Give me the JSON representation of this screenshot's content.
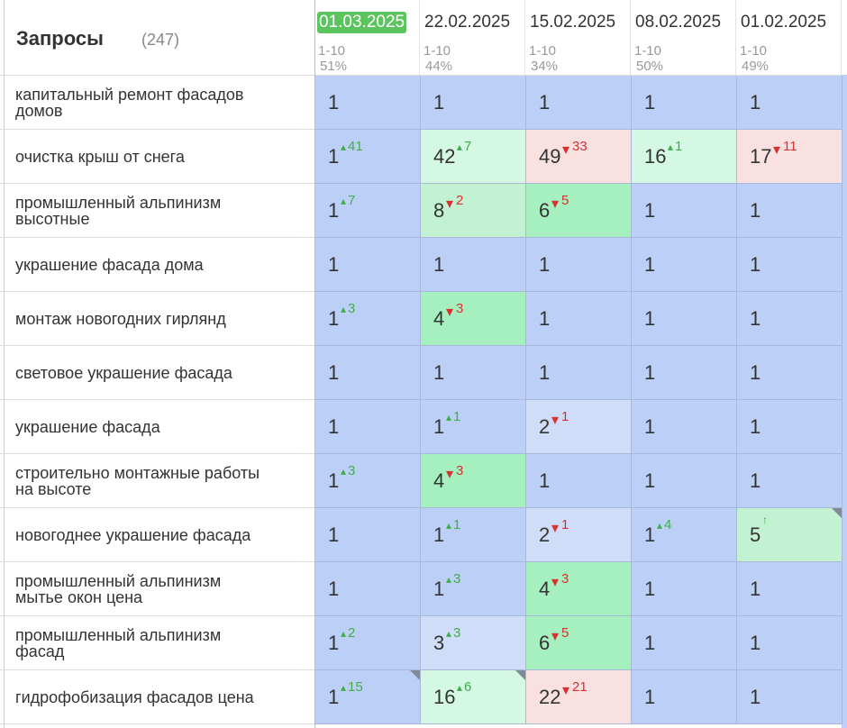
{
  "header": {
    "title": "Запросы",
    "count": "(247)"
  },
  "columns": [
    {
      "date": "01.03.2025",
      "range": "1-10",
      "percent": "51%",
      "current": true
    },
    {
      "date": "22.02.2025",
      "range": "1-10",
      "percent": "44%"
    },
    {
      "date": "15.02.2025",
      "range": "1-10",
      "percent": "34%"
    },
    {
      "date": "08.02.2025",
      "range": "1-10",
      "percent": "50%"
    },
    {
      "date": "01.02.2025",
      "range": "1-10",
      "percent": "49%"
    }
  ],
  "rows": [
    {
      "query": "капитальный ремонт фасадов домов",
      "cells": [
        {
          "value": 1,
          "bg": "blue"
        },
        {
          "value": 1,
          "bg": "blue"
        },
        {
          "value": 1,
          "bg": "blue"
        },
        {
          "value": 1,
          "bg": "blue"
        },
        {
          "value": 1,
          "bg": "blue"
        }
      ]
    },
    {
      "query": "очистка крыш от снега",
      "cells": [
        {
          "value": 1,
          "change": 41,
          "dir": "up",
          "bg": "blue"
        },
        {
          "value": 42,
          "change": 7,
          "dir": "up",
          "bg": "mint"
        },
        {
          "value": 49,
          "change": 33,
          "dir": "down",
          "bg": "pink"
        },
        {
          "value": 16,
          "change": 1,
          "dir": "up",
          "bg": "mint"
        },
        {
          "value": 17,
          "change": 11,
          "dir": "down",
          "bg": "pink"
        }
      ]
    },
    {
      "query": "промышленный альпинизм высотные",
      "cells": [
        {
          "value": 1,
          "change": 7,
          "dir": "up",
          "bg": "blue"
        },
        {
          "value": 8,
          "change": 2,
          "dir": "down",
          "bg": "midgreen"
        },
        {
          "value": 6,
          "change": 5,
          "dir": "down",
          "bg": "green"
        },
        {
          "value": 1,
          "bg": "blue"
        },
        {
          "value": 1,
          "bg": "blue"
        }
      ]
    },
    {
      "query": "украшение фасада дома",
      "cells": [
        {
          "value": 1,
          "bg": "blue"
        },
        {
          "value": 1,
          "bg": "blue"
        },
        {
          "value": 1,
          "bg": "blue"
        },
        {
          "value": 1,
          "bg": "blue"
        },
        {
          "value": 1,
          "bg": "blue"
        }
      ]
    },
    {
      "query": "монтаж новогодних гирлянд",
      "cells": [
        {
          "value": 1,
          "change": 3,
          "dir": "up",
          "bg": "blue"
        },
        {
          "value": 4,
          "change": 3,
          "dir": "down",
          "bg": "green"
        },
        {
          "value": 1,
          "bg": "blue"
        },
        {
          "value": 1,
          "bg": "blue"
        },
        {
          "value": 1,
          "bg": "blue"
        }
      ]
    },
    {
      "query": "световое украшение фасада",
      "cells": [
        {
          "value": 1,
          "bg": "blue"
        },
        {
          "value": 1,
          "bg": "blue"
        },
        {
          "value": 1,
          "bg": "blue"
        },
        {
          "value": 1,
          "bg": "blue"
        },
        {
          "value": 1,
          "bg": "blue"
        }
      ]
    },
    {
      "query": "украшение фасада",
      "cells": [
        {
          "value": 1,
          "bg": "blue"
        },
        {
          "value": 1,
          "change": 1,
          "dir": "up",
          "bg": "blue"
        },
        {
          "value": 2,
          "change": 1,
          "dir": "down",
          "bg": "lightblue"
        },
        {
          "value": 1,
          "bg": "blue"
        },
        {
          "value": 1,
          "bg": "blue"
        }
      ]
    },
    {
      "query": "строительно монтажные работы на высоте",
      "cells": [
        {
          "value": 1,
          "change": 3,
          "dir": "up",
          "bg": "blue"
        },
        {
          "value": 4,
          "change": 3,
          "dir": "down",
          "bg": "green"
        },
        {
          "value": 1,
          "bg": "blue"
        },
        {
          "value": 1,
          "bg": "blue"
        },
        {
          "value": 1,
          "bg": "blue"
        }
      ]
    },
    {
      "query": "новогоднее украшение фасада",
      "cells": [
        {
          "value": 1,
          "bg": "blue"
        },
        {
          "value": 1,
          "change": 1,
          "dir": "up",
          "bg": "blue"
        },
        {
          "value": 2,
          "change": 1,
          "dir": "down",
          "bg": "lightblue"
        },
        {
          "value": 1,
          "change": 4,
          "dir": "up",
          "bg": "blue"
        },
        {
          "value": 5,
          "dir": "new",
          "bg": "midgreen",
          "note": true
        }
      ]
    },
    {
      "query": "промышленный альпинизм мытье окон цена",
      "cells": [
        {
          "value": 1,
          "bg": "blue"
        },
        {
          "value": 1,
          "change": 3,
          "dir": "up",
          "bg": "blue"
        },
        {
          "value": 4,
          "change": 3,
          "dir": "down",
          "bg": "green"
        },
        {
          "value": 1,
          "bg": "blue"
        },
        {
          "value": 1,
          "bg": "blue"
        }
      ]
    },
    {
      "query": "промышленный альпинизм фасад",
      "cells": [
        {
          "value": 1,
          "change": 2,
          "dir": "up",
          "bg": "blue"
        },
        {
          "value": 3,
          "change": 3,
          "dir": "up",
          "bg": "lightblue"
        },
        {
          "value": 6,
          "change": 5,
          "dir": "down",
          "bg": "green"
        },
        {
          "value": 1,
          "bg": "blue"
        },
        {
          "value": 1,
          "bg": "blue"
        }
      ]
    },
    {
      "query": "гидрофобизация фасадов цена",
      "cells": [
        {
          "value": 1,
          "change": 15,
          "dir": "up",
          "bg": "blue",
          "note": true
        },
        {
          "value": 16,
          "change": 6,
          "dir": "up",
          "bg": "mint",
          "note": true
        },
        {
          "value": 22,
          "change": 21,
          "dir": "down",
          "bg": "pink"
        },
        {
          "value": 1,
          "bg": "blue"
        },
        {
          "value": 1,
          "bg": "blue"
        }
      ]
    }
  ]
}
